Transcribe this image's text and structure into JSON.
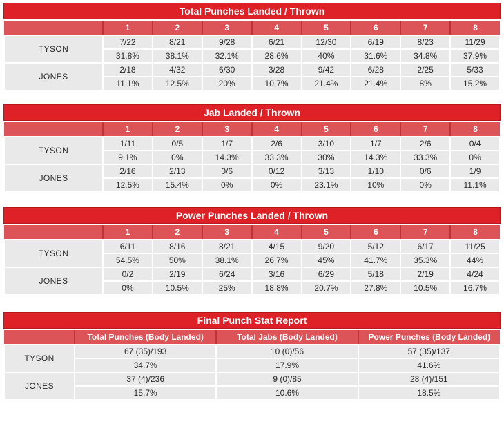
{
  "colors": {
    "title_bar": "#de2027",
    "title_bar_border": "#b5181d",
    "header_bg": "#dc5358",
    "header_divider": "#bf3338",
    "cell_bg": "#e9e9e9",
    "header_text": "#ffffff",
    "text": "#2b2b2b"
  },
  "chart_data": [
    {
      "type": "table",
      "title": "Total Punches Landed / Thrown",
      "columns": [
        "1",
        "2",
        "3",
        "4",
        "5",
        "6",
        "7",
        "8"
      ],
      "rows": [
        {
          "name": "TYSON",
          "values": [
            "7/22",
            "8/21",
            "9/28",
            "6/21",
            "12/30",
            "6/19",
            "8/23",
            "11/29"
          ],
          "percents": [
            "31.8%",
            "38.1%",
            "32.1%",
            "28.6%",
            "40%",
            "31.6%",
            "34.8%",
            "37.9%"
          ]
        },
        {
          "name": "JONES",
          "values": [
            "2/18",
            "4/32",
            "6/30",
            "3/28",
            "9/42",
            "6/28",
            "2/25",
            "5/33"
          ],
          "percents": [
            "11.1%",
            "12.5%",
            "20%",
            "10.7%",
            "21.4%",
            "21.4%",
            "8%",
            "15.2%"
          ]
        }
      ]
    },
    {
      "type": "table",
      "title": "Jab Landed / Thrown",
      "columns": [
        "1",
        "2",
        "3",
        "4",
        "5",
        "6",
        "7",
        "8"
      ],
      "rows": [
        {
          "name": "TYSON",
          "values": [
            "1/11",
            "0/5",
            "1/7",
            "2/6",
            "3/10",
            "1/7",
            "2/6",
            "0/4"
          ],
          "percents": [
            "9.1%",
            "0%",
            "14.3%",
            "33.3%",
            "30%",
            "14.3%",
            "33.3%",
            "0%"
          ]
        },
        {
          "name": "JONES",
          "values": [
            "2/16",
            "2/13",
            "0/6",
            "0/12",
            "3/13",
            "1/10",
            "0/6",
            "1/9"
          ],
          "percents": [
            "12.5%",
            "15.4%",
            "0%",
            "0%",
            "23.1%",
            "10%",
            "0%",
            "11.1%"
          ]
        }
      ]
    },
    {
      "type": "table",
      "title": "Power Punches Landed / Thrown",
      "columns": [
        "1",
        "2",
        "3",
        "4",
        "5",
        "6",
        "7",
        "8"
      ],
      "rows": [
        {
          "name": "TYSON",
          "values": [
            "6/11",
            "8/16",
            "8/21",
            "4/15",
            "9/20",
            "5/12",
            "6/17",
            "11/25"
          ],
          "percents": [
            "54.5%",
            "50%",
            "38.1%",
            "26.7%",
            "45%",
            "41.7%",
            "35.3%",
            "44%"
          ]
        },
        {
          "name": "JONES",
          "values": [
            "0/2",
            "2/19",
            "6/24",
            "3/16",
            "6/29",
            "5/18",
            "2/19",
            "4/24"
          ],
          "percents": [
            "0%",
            "10.5%",
            "25%",
            "18.8%",
            "20.7%",
            "27.8%",
            "10.5%",
            "16.7%"
          ]
        }
      ]
    },
    {
      "type": "table",
      "title": "Final Punch Stat Report",
      "columns": [
        "Total Punches (Body Landed)",
        "Total Jabs (Body Landed)",
        "Power Punches (Body Landed)"
      ],
      "rows": [
        {
          "name": "TYSON",
          "values": [
            "67 (35)/193",
            "10 (0)/56",
            "57 (35)/137"
          ],
          "percents": [
            "34.7%",
            "17.9%",
            "41.6%"
          ]
        },
        {
          "name": "JONES",
          "values": [
            "37 (4)/236",
            "9 (0)/85",
            "28 (4)/151"
          ],
          "percents": [
            "15.7%",
            "10.6%",
            "18.5%"
          ]
        }
      ]
    }
  ]
}
